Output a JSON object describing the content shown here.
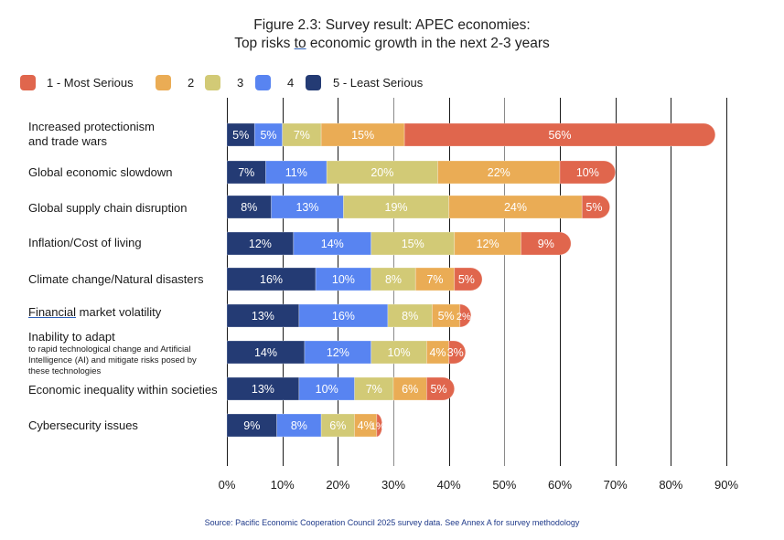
{
  "chart_data": {
    "type": "bar",
    "orientation": "horizontal",
    "stacked": true,
    "title": "Figure 2.3: Survey result: APEC economies:",
    "subtitle_parts": [
      "Top risks ",
      "to",
      " economic growth in the next 2-3 years"
    ],
    "xlabel": "",
    "ylabel": "",
    "xlim": [
      0,
      90
    ],
    "x_ticks": [
      "0%",
      "10%",
      "20%",
      "30%",
      "40%",
      "50%",
      "60%",
      "70%",
      "80%",
      "90%"
    ],
    "grid": true,
    "legend_position": "top-left",
    "categories": [
      {
        "label": "Increased protectionism",
        "label2": "and trade wars",
        "sub": ""
      },
      {
        "label": "Global economic slowdown",
        "label2": "",
        "sub": ""
      },
      {
        "label": "Global supply chain disruption",
        "label2": "",
        "sub": ""
      },
      {
        "label": "Inflation/Cost of living",
        "label2": "",
        "sub": ""
      },
      {
        "label": "Climate change/Natural disasters",
        "label2": "",
        "sub": ""
      },
      {
        "label_underlined": "Financial",
        "label": " market volatility",
        "label2": "",
        "sub": ""
      },
      {
        "label": "Inability to adapt",
        "label2": "",
        "sub": "to rapid technological change and Artificial Intelligence (AI) and mitigate risks posed by these technologies"
      },
      {
        "label": "Economic inequality within societies",
        "label2": "",
        "sub": ""
      },
      {
        "label": "Cybersecurity issues",
        "label2": "",
        "sub": ""
      }
    ],
    "series": [
      {
        "name": "5 - Least Serious",
        "color": "#243B74",
        "values": [
          5,
          7,
          8,
          12,
          16,
          13,
          14,
          13,
          9
        ]
      },
      {
        "name": "4",
        "color": "#5884F1",
        "values": [
          5,
          11,
          13,
          14,
          10,
          16,
          12,
          10,
          8
        ]
      },
      {
        "name": "3",
        "color": "#D2CA76",
        "values": [
          7,
          20,
          19,
          15,
          8,
          8,
          10,
          7,
          6
        ]
      },
      {
        "name": "2",
        "color": "#EAAC55",
        "values": [
          15,
          22,
          24,
          12,
          7,
          5,
          4,
          6,
          4
        ]
      },
      {
        "name": "1 - Most Serious",
        "color": "#E0664D",
        "values": [
          56,
          10,
          5,
          9,
          5,
          2,
          3,
          5,
          1
        ]
      }
    ],
    "legend_order": [
      {
        "name": "1 - Most Serious",
        "color": "#E0664D"
      },
      {
        "name": "2",
        "color": "#EAAC55"
      },
      {
        "name": "3",
        "color": "#D2CA76"
      },
      {
        "name": "4",
        "color": "#5884F1"
      },
      {
        "name": "5 - Least Serious",
        "color": "#243B74"
      }
    ]
  },
  "source": "Source: Pacific Economic Cooperation Council 2025 survey data. See Annex A for survey methodology"
}
